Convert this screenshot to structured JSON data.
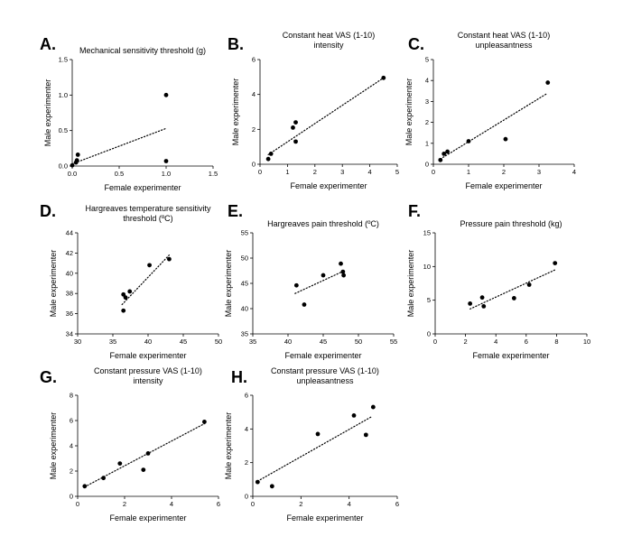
{
  "chart_data": [
    {
      "letter": "A.",
      "type": "scatter",
      "title": [
        "Mechanical sensitivity threshold (g)"
      ],
      "xlabel": "Female experimenter",
      "ylabel": "Male experimenter",
      "xlim": [
        0,
        1.5
      ],
      "ylim": [
        0,
        1.5
      ],
      "xticks": [
        0,
        0.5,
        1.0,
        1.5
      ],
      "yticks": [
        0,
        0.5,
        1.0,
        1.5
      ],
      "xtick_labels": [
        "0.0",
        "0.5",
        "1.0",
        "1.5"
      ],
      "ytick_labels": [
        "0.0",
        "0.5",
        "1.0",
        "1.5"
      ],
      "points": [
        [
          0.0,
          0.01
        ],
        [
          0.04,
          0.05
        ],
        [
          0.05,
          0.08
        ],
        [
          0.06,
          0.16
        ],
        [
          1.0,
          1.0
        ],
        [
          1.0,
          0.07
        ]
      ],
      "trendline": [
        [
          0.0,
          0.03
        ],
        [
          1.0,
          0.53
        ]
      ]
    },
    {
      "letter": "B.",
      "type": "scatter",
      "title": [
        "Constant heat VAS (1-10)",
        "intensity"
      ],
      "xlabel": "Female experimenter",
      "ylabel": "Male experimenter",
      "xlim": [
        0,
        5
      ],
      "ylim": [
        0,
        6
      ],
      "xticks": [
        0,
        1,
        2,
        3,
        4,
        5
      ],
      "yticks": [
        0,
        2,
        4,
        6
      ],
      "xtick_labels": [
        "0",
        "1",
        "2",
        "3",
        "4",
        "5"
      ],
      "ytick_labels": [
        "0",
        "2",
        "4",
        "6"
      ],
      "points": [
        [
          0.3,
          0.3
        ],
        [
          0.4,
          0.6
        ],
        [
          1.2,
          2.1
        ],
        [
          1.3,
          2.4
        ],
        [
          1.3,
          1.3
        ],
        [
          4.5,
          4.95
        ]
      ],
      "trendline": [
        [
          0.3,
          0.55
        ],
        [
          4.5,
          4.95
        ]
      ]
    },
    {
      "letter": "C.",
      "type": "scatter",
      "title": [
        "Constant heat VAS (1-10)",
        "unpleasantness"
      ],
      "xlabel": "Female experimenter",
      "ylabel": "Male experimenter",
      "xlim": [
        0,
        4
      ],
      "ylim": [
        0,
        5
      ],
      "xticks": [
        0,
        1,
        2,
        3,
        4
      ],
      "yticks": [
        0,
        1,
        2,
        3,
        4,
        5
      ],
      "xtick_labels": [
        "0",
        "1",
        "2",
        "3",
        "4"
      ],
      "ytick_labels": [
        "0",
        "1",
        "2",
        "3",
        "4",
        "5"
      ],
      "points": [
        [
          0.2,
          0.2
        ],
        [
          0.3,
          0.5
        ],
        [
          0.4,
          0.6
        ],
        [
          1.0,
          1.1
        ],
        [
          2.05,
          1.2
        ],
        [
          3.25,
          3.9
        ]
      ],
      "trendline": [
        [
          0.2,
          0.25
        ],
        [
          3.2,
          3.35
        ]
      ]
    },
    {
      "letter": "D.",
      "type": "scatter",
      "title": [
        "Hargreaves temperature sensitivity",
        "threshold (ºC)"
      ],
      "xlabel": "Female experimenter",
      "ylabel": "Male experimenter",
      "xlim": [
        30,
        50
      ],
      "ylim": [
        34,
        44
      ],
      "xticks": [
        30,
        35,
        40,
        45,
        50
      ],
      "yticks": [
        34,
        36,
        38,
        40,
        42,
        44
      ],
      "xtick_labels": [
        "30",
        "35",
        "40",
        "45",
        "50"
      ],
      "ytick_labels": [
        "34",
        "36",
        "38",
        "40",
        "42",
        "44"
      ],
      "points": [
        [
          36.5,
          36.3
        ],
        [
          36.5,
          37.9
        ],
        [
          36.8,
          37.6
        ],
        [
          37.4,
          38.2
        ],
        [
          40.2,
          40.8
        ],
        [
          43.0,
          41.4
        ]
      ],
      "trendline": [
        [
          36.3,
          36.9
        ],
        [
          43.0,
          41.8
        ]
      ]
    },
    {
      "letter": "E.",
      "type": "scatter",
      "title": [
        "Hargreaves pain threshold (ºC)"
      ],
      "xlabel": "Female experimenter",
      "ylabel": "Male experimenter",
      "xlim": [
        35,
        55
      ],
      "ylim": [
        35,
        55
      ],
      "xticks": [
        35,
        40,
        45,
        50,
        55
      ],
      "yticks": [
        35,
        40,
        45,
        50,
        55
      ],
      "xtick_labels": [
        "35",
        "40",
        "45",
        "50",
        "55"
      ],
      "ytick_labels": [
        "35",
        "40",
        "45",
        "50",
        "55"
      ],
      "points": [
        [
          41.2,
          44.6
        ],
        [
          42.3,
          40.8
        ],
        [
          45.0,
          46.6
        ],
        [
          47.5,
          48.9
        ],
        [
          47.8,
          47.3
        ],
        [
          47.9,
          46.6
        ]
      ],
      "trendline": [
        [
          41.0,
          43.0
        ],
        [
          48.0,
          47.5
        ]
      ]
    },
    {
      "letter": "F.",
      "type": "scatter",
      "title": [
        "Pressure pain threshold (kg)"
      ],
      "xlabel": "Female experimenter",
      "ylabel": "Male experimenter",
      "xlim": [
        0,
        10
      ],
      "ylim": [
        0,
        15
      ],
      "xticks": [
        0,
        2,
        4,
        6,
        8,
        10
      ],
      "yticks": [
        0,
        5,
        10,
        15
      ],
      "xtick_labels": [
        "0",
        "2",
        "4",
        "6",
        "8",
        "10"
      ],
      "ytick_labels": [
        "0",
        "5",
        "10",
        "15"
      ],
      "points": [
        [
          2.3,
          4.5
        ],
        [
          3.1,
          5.4
        ],
        [
          3.2,
          4.1
        ],
        [
          5.2,
          5.3
        ],
        [
          6.2,
          7.3
        ],
        [
          7.9,
          10.5
        ]
      ],
      "trendline": [
        [
          2.3,
          3.7
        ],
        [
          7.9,
          9.5
        ]
      ]
    },
    {
      "letter": "G.",
      "type": "scatter",
      "title": [
        "Constant pressure VAS (1-10)",
        "intensity"
      ],
      "xlabel": "Female experimenter",
      "ylabel": "Male experimenter",
      "xlim": [
        0,
        6
      ],
      "ylim": [
        0,
        8
      ],
      "xticks": [
        0,
        2,
        4,
        6
      ],
      "yticks": [
        0,
        2,
        4,
        6,
        8
      ],
      "xtick_labels": [
        "0",
        "2",
        "4",
        "6"
      ],
      "ytick_labels": [
        "0",
        "2",
        "4",
        "6",
        "8"
      ],
      "points": [
        [
          0.3,
          0.8
        ],
        [
          1.1,
          1.45
        ],
        [
          1.8,
          2.6
        ],
        [
          2.8,
          2.1
        ],
        [
          3.0,
          3.4
        ],
        [
          5.4,
          5.9
        ]
      ],
      "trendline": [
        [
          0.3,
          0.75
        ],
        [
          5.4,
          5.75
        ]
      ]
    },
    {
      "letter": "H.",
      "type": "scatter",
      "title": [
        "Constant pressure VAS (1-10)",
        "unpleasantness"
      ],
      "xlabel": "Female experimenter",
      "ylabel": "Male experimenter",
      "xlim": [
        0,
        6
      ],
      "ylim": [
        0,
        6
      ],
      "xticks": [
        0,
        2,
        4,
        6
      ],
      "yticks": [
        0,
        2,
        4,
        6
      ],
      "xtick_labels": [
        "0",
        "2",
        "4",
        "6"
      ],
      "ytick_labels": [
        "0",
        "2",
        "4",
        "6"
      ],
      "points": [
        [
          0.2,
          0.85
        ],
        [
          0.8,
          0.6
        ],
        [
          2.7,
          3.7
        ],
        [
          4.2,
          4.8
        ],
        [
          4.7,
          3.65
        ],
        [
          5.0,
          5.3
        ]
      ],
      "trendline": [
        [
          0.2,
          0.9
        ],
        [
          4.9,
          4.7
        ]
      ]
    }
  ]
}
